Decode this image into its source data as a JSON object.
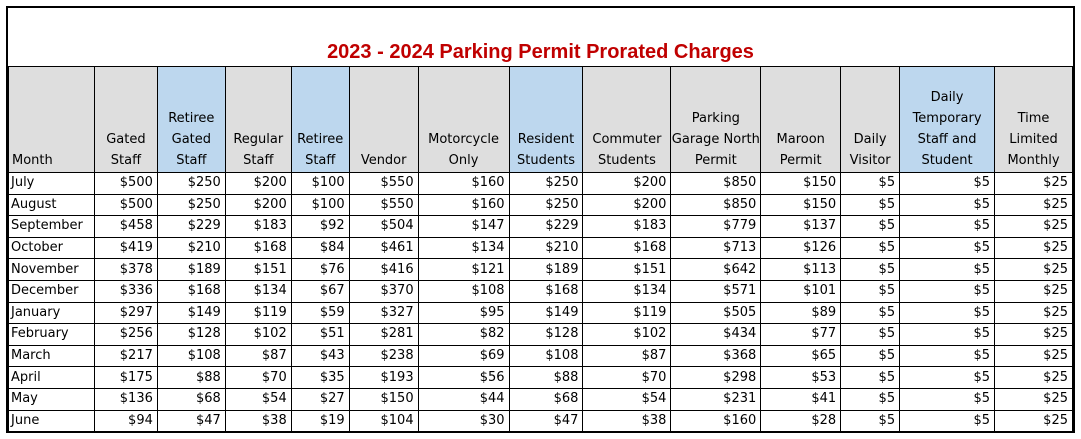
{
  "title": "2023 - 2024 Parking Permit Prorated Charges",
  "columns": [
    {
      "label": "Month",
      "shade": "gray"
    },
    {
      "label": "Gated Staff",
      "shade": "gray"
    },
    {
      "label": "Retiree Gated Staff",
      "shade": "blue"
    },
    {
      "label": "Regular Staff",
      "shade": "gray"
    },
    {
      "label": "Retiree Staff",
      "shade": "blue"
    },
    {
      "label": "Vendor",
      "shade": "gray"
    },
    {
      "label": "Motorcycle Only",
      "shade": "gray"
    },
    {
      "label": "Resident Students",
      "shade": "blue"
    },
    {
      "label": "Commuter Students",
      "shade": "gray"
    },
    {
      "label": "Parking Garage North Permit",
      "shade": "gray"
    },
    {
      "label": "Maroon Permit",
      "shade": "gray"
    },
    {
      "label": "Daily Visitor",
      "shade": "gray"
    },
    {
      "label": "Daily Temporary Staff and Student",
      "shade": "blue"
    },
    {
      "label": "Time Limited Monthly",
      "shade": "gray"
    }
  ],
  "rows": [
    [
      "July",
      "$500",
      "$250",
      "$200",
      "$100",
      "$550",
      "$160",
      "$250",
      "$200",
      "$850",
      "$150",
      "$5",
      "$5",
      "$25"
    ],
    [
      "August",
      "$500",
      "$250",
      "$200",
      "$100",
      "$550",
      "$160",
      "$250",
      "$200",
      "$850",
      "$150",
      "$5",
      "$5",
      "$25"
    ],
    [
      "September",
      "$458",
      "$229",
      "$183",
      "$92",
      "$504",
      "$147",
      "$229",
      "$183",
      "$779",
      "$137",
      "$5",
      "$5",
      "$25"
    ],
    [
      "October",
      "$419",
      "$210",
      "$168",
      "$84",
      "$461",
      "$134",
      "$210",
      "$168",
      "$713",
      "$126",
      "$5",
      "$5",
      "$25"
    ],
    [
      "November",
      "$378",
      "$189",
      "$151",
      "$76",
      "$416",
      "$121",
      "$189",
      "$151",
      "$642",
      "$113",
      "$5",
      "$5",
      "$25"
    ],
    [
      "December",
      "$336",
      "$168",
      "$134",
      "$67",
      "$370",
      "$108",
      "$168",
      "$134",
      "$571",
      "$101",
      "$5",
      "$5",
      "$25"
    ],
    [
      "January",
      "$297",
      "$149",
      "$119",
      "$59",
      "$327",
      "$95",
      "$149",
      "$119",
      "$505",
      "$89",
      "$5",
      "$5",
      "$25"
    ],
    [
      "February",
      "$256",
      "$128",
      "$102",
      "$51",
      "$281",
      "$82",
      "$128",
      "$102",
      "$434",
      "$77",
      "$5",
      "$5",
      "$25"
    ],
    [
      "March",
      "$217",
      "$108",
      "$87",
      "$43",
      "$238",
      "$69",
      "$108",
      "$87",
      "$368",
      "$65",
      "$5",
      "$5",
      "$25"
    ],
    [
      "April",
      "$175",
      "$88",
      "$70",
      "$35",
      "$193",
      "$56",
      "$88",
      "$70",
      "$298",
      "$53",
      "$5",
      "$5",
      "$25"
    ],
    [
      "May",
      "$136",
      "$68",
      "$54",
      "$27",
      "$150",
      "$44",
      "$68",
      "$54",
      "$231",
      "$41",
      "$5",
      "$5",
      "$25"
    ],
    [
      "June",
      "$94",
      "$47",
      "$38",
      "$19",
      "$104",
      "$30",
      "$47",
      "$38",
      "$160",
      "$28",
      "$5",
      "$5",
      "$25"
    ]
  ]
}
